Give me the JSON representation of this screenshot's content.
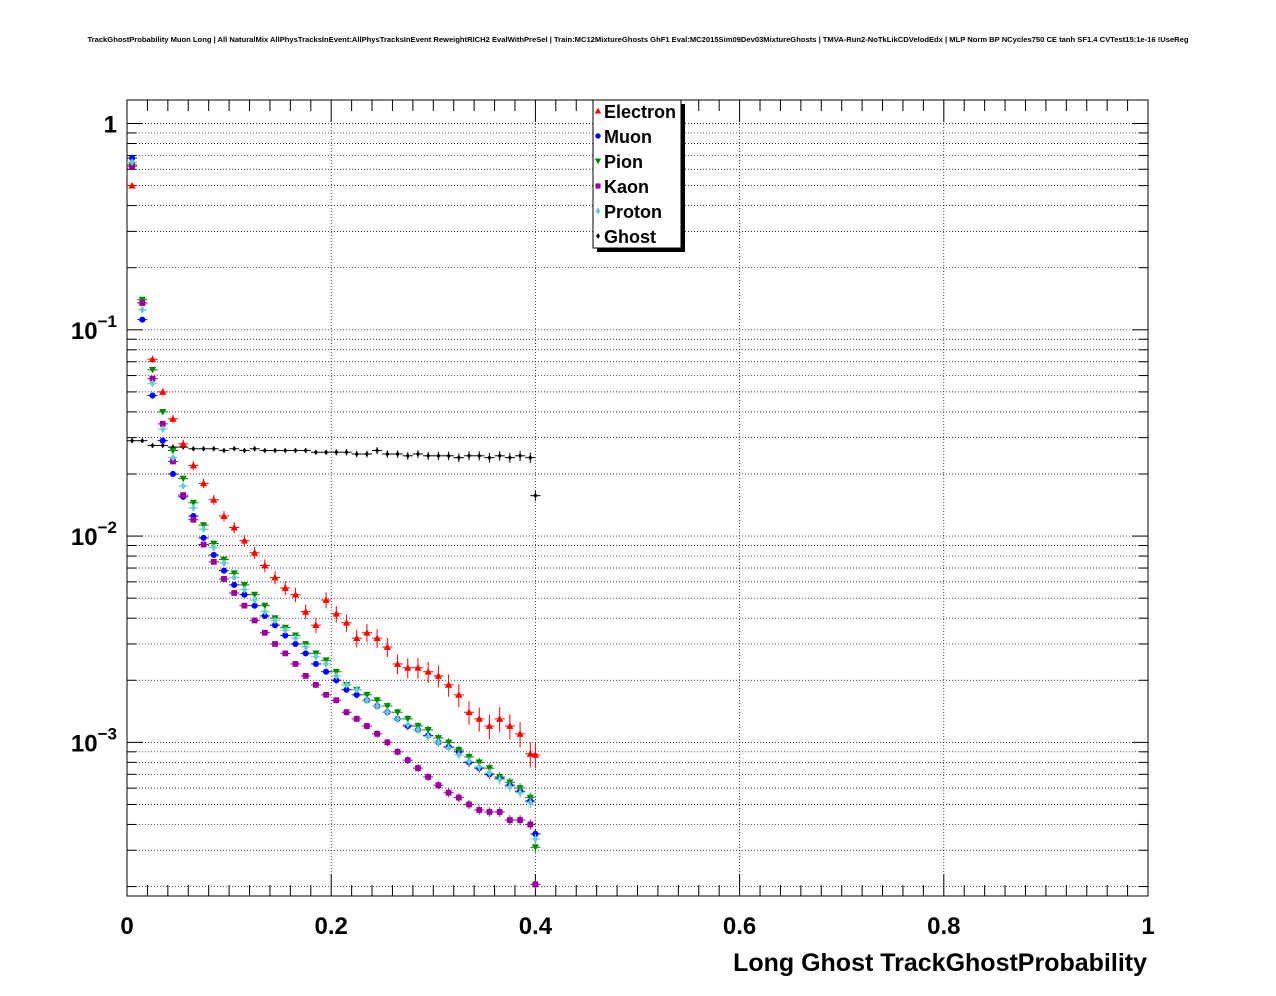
{
  "chart_data": {
    "type": "scatter",
    "title": "TrackGhostProbability Muon Long | All NaturalMix AllPhysTracksInEvent:AllPhysTracksInEvent ReweightRICH2 EvalWithPreSel | Train:MC12MixtureGhosts GhF1 Eval:MC2015Sim09Dev03MixtureGhosts | TMVA-Run2-NoTkLikCDVelodEdx | MLP Norm BP NCycles750 CE tanh SF1.4 CVTest15:1e-16 !UseReg",
    "xlabel": "Long Ghost TrackGhostProbability",
    "ylabel": "",
    "xlim": [
      0,
      1
    ],
    "ylim": [
      0.00018,
      1.3
    ],
    "yscale": "log",
    "grid": true,
    "legend_position": "top-center",
    "x_ticks": [
      {
        "value": 0,
        "label": "0"
      },
      {
        "value": 0.2,
        "label": "0.2"
      },
      {
        "value": 0.4,
        "label": "0.4"
      },
      {
        "value": 0.6,
        "label": "0.6"
      },
      {
        "value": 0.8,
        "label": "0.8"
      },
      {
        "value": 1,
        "label": "1"
      }
    ],
    "y_ticks": [
      {
        "value": 1,
        "base": "1",
        "exp": ""
      },
      {
        "value": 0.1,
        "base": "10",
        "exp": "−1"
      },
      {
        "value": 0.01,
        "base": "10",
        "exp": "−2"
      },
      {
        "value": 0.001,
        "base": "10",
        "exp": "−3"
      }
    ],
    "x": [
      0.005,
      0.015,
      0.025,
      0.035,
      0.045,
      0.055,
      0.065,
      0.075,
      0.085,
      0.095,
      0.105,
      0.115,
      0.125,
      0.135,
      0.145,
      0.155,
      0.165,
      0.175,
      0.185,
      0.195,
      0.205,
      0.215,
      0.225,
      0.235,
      0.245,
      0.255,
      0.265,
      0.275,
      0.285,
      0.295,
      0.305,
      0.315,
      0.325,
      0.335,
      0.345,
      0.355,
      0.365,
      0.375,
      0.385,
      0.395,
      0.4
    ],
    "series": [
      {
        "name": "Electron",
        "color": "#ff0000",
        "marker": "triangle-up",
        "values": [
          0.5,
          0.135,
          0.072,
          0.05,
          0.037,
          0.028,
          0.022,
          0.018,
          0.015,
          0.0125,
          0.011,
          0.0095,
          0.0083,
          0.0072,
          0.0063,
          0.0056,
          0.0052,
          0.0043,
          0.0037,
          0.0049,
          0.0042,
          0.0038,
          0.0032,
          0.0034,
          0.0032,
          0.0029,
          0.0024,
          0.0023,
          0.0023,
          0.0022,
          0.0021,
          0.0019,
          0.0017,
          0.0014,
          0.0013,
          0.0012,
          0.0013,
          0.0012,
          0.0011,
          0.00088,
          0.00087
        ]
      },
      {
        "name": "Muon",
        "color": "#0000ff",
        "marker": "circle",
        "values": [
          0.68,
          0.112,
          0.048,
          0.029,
          0.02,
          0.0155,
          0.0125,
          0.0098,
          0.0081,
          0.0068,
          0.0058,
          0.0052,
          0.0046,
          0.0041,
          0.0037,
          0.0033,
          0.003,
          0.0027,
          0.0024,
          0.0022,
          0.002,
          0.0018,
          0.0017,
          0.0016,
          0.0015,
          0.0014,
          0.0013,
          0.0012,
          0.00115,
          0.00108,
          0.001,
          0.00095,
          0.0009,
          0.0008,
          0.00075,
          0.0007,
          0.00067,
          0.00062,
          0.00058,
          0.00052,
          0.00036
        ]
      },
      {
        "name": "Pion",
        "color": "#008800",
        "marker": "triangle-down",
        "values": [
          0.63,
          0.14,
          0.064,
          0.04,
          0.026,
          0.019,
          0.0145,
          0.0113,
          0.0092,
          0.0077,
          0.0066,
          0.0058,
          0.0052,
          0.0046,
          0.004,
          0.0036,
          0.0033,
          0.003,
          0.0027,
          0.0025,
          0.0022,
          0.0019,
          0.0018,
          0.0017,
          0.0016,
          0.0015,
          0.0014,
          0.0013,
          0.0012,
          0.00115,
          0.00105,
          0.001,
          0.00092,
          0.00085,
          0.0008,
          0.00075,
          0.00068,
          0.00064,
          0.0006,
          0.00054,
          0.00031
        ]
      },
      {
        "name": "Kaon",
        "color": "#990099",
        "marker": "square",
        "values": [
          0.62,
          0.135,
          0.058,
          0.035,
          0.023,
          0.0158,
          0.012,
          0.0091,
          0.0075,
          0.0062,
          0.0053,
          0.0046,
          0.0039,
          0.0034,
          0.003,
          0.0027,
          0.0024,
          0.0021,
          0.0019,
          0.0017,
          0.0016,
          0.0014,
          0.0013,
          0.0012,
          0.0011,
          0.001,
          0.0009,
          0.00082,
          0.00075,
          0.00068,
          0.00062,
          0.00057,
          0.00054,
          0.0005,
          0.00047,
          0.00046,
          0.00046,
          0.00042,
          0.00042,
          0.0004,
          0.000205
        ]
      },
      {
        "name": "Proton",
        "color": "#66cccc",
        "marker": "diamond",
        "values": [
          0.65,
          0.125,
          0.055,
          0.033,
          0.024,
          0.0175,
          0.0137,
          0.0108,
          0.0088,
          0.0074,
          0.0063,
          0.0055,
          0.0049,
          0.0043,
          0.0039,
          0.0035,
          0.0032,
          0.0029,
          0.0026,
          0.0024,
          0.0021,
          0.0019,
          0.0018,
          0.0016,
          0.0015,
          0.0014,
          0.0013,
          0.00122,
          0.00115,
          0.00107,
          0.001,
          0.00094,
          0.00087,
          0.00081,
          0.00076,
          0.00071,
          0.00066,
          0.00061,
          0.00057,
          0.00051,
          0.00034
        ]
      },
      {
        "name": "Ghost",
        "color": "#000000",
        "marker": "diamond",
        "values": [
          0.029,
          0.029,
          0.0275,
          0.0275,
          0.027,
          0.027,
          0.0265,
          0.0265,
          0.0265,
          0.026,
          0.0265,
          0.026,
          0.0265,
          0.026,
          0.026,
          0.026,
          0.026,
          0.026,
          0.0255,
          0.0255,
          0.0255,
          0.0255,
          0.025,
          0.025,
          0.026,
          0.025,
          0.025,
          0.0245,
          0.025,
          0.0245,
          0.0245,
          0.0245,
          0.024,
          0.0245,
          0.0245,
          0.024,
          0.0245,
          0.024,
          0.0245,
          0.024,
          0.0157
        ]
      }
    ]
  }
}
